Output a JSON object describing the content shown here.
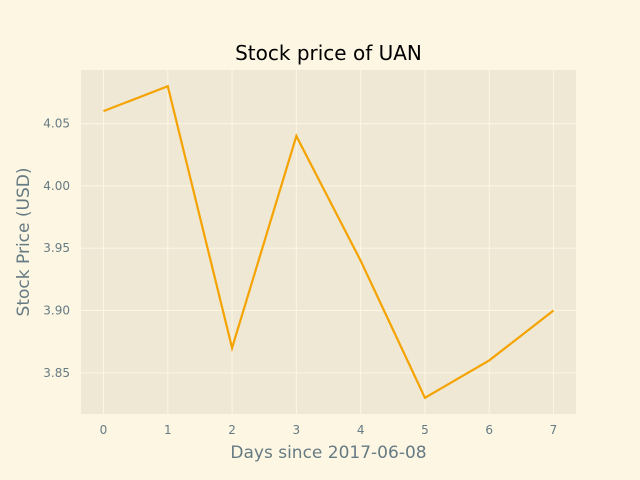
{
  "chart_data": {
    "type": "line",
    "title": "Stock price of UAN",
    "xlabel": "Days since 2017-06-08",
    "ylabel": "Stock Price (USD)",
    "x": [
      0,
      1,
      2,
      3,
      4,
      5,
      6,
      7
    ],
    "series": [
      {
        "values": [
          4.06,
          4.08,
          3.87,
          4.04,
          3.94,
          3.83,
          3.86,
          3.9
        ]
      }
    ],
    "xticks": [
      "0",
      "1",
      "2",
      "3",
      "4",
      "5",
      "6",
      "7"
    ],
    "yticks": [
      "3.85",
      "3.90",
      "3.95",
      "4.00",
      "4.05"
    ],
    "xlim": [
      -0.35,
      7.35
    ],
    "ylim": [
      3.817,
      4.093
    ],
    "grid": true,
    "colors": {
      "page_background": "#fdf6e3",
      "plot_background": "#eee8d5",
      "grid": "#fdf6e3",
      "line": "#f5a300",
      "tick_text": "#657b83",
      "label_text": "#657b83",
      "title_text": "#000000"
    }
  }
}
